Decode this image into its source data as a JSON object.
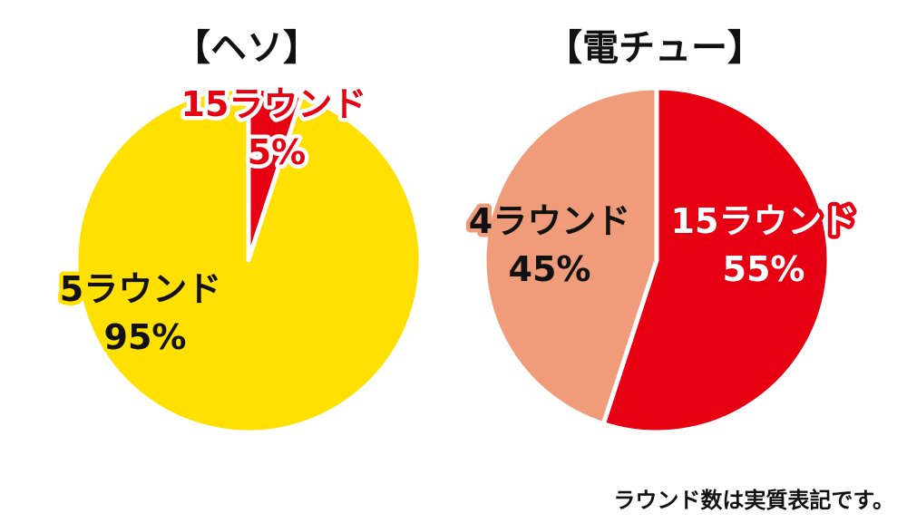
{
  "chart_data": [
    {
      "type": "pie",
      "title": "【ヘソ】",
      "slices": [
        {
          "label": "5ラウンド",
          "value": 95,
          "value_label": "95%",
          "color": "#FFE000",
          "text_color": "#111111",
          "stroke_color": "#FFE000"
        },
        {
          "label": "15ラウンド",
          "value": 5,
          "value_label": "5%",
          "color": "#E60012",
          "text_color": "#E60012",
          "stroke_color": "#FFFFFF"
        }
      ]
    },
    {
      "type": "pie",
      "title": "【電チュー】",
      "slices": [
        {
          "label": "15ラウンド",
          "value": 55,
          "value_label": "55%",
          "color": "#E60012",
          "text_color": "#FFFFFF",
          "stroke_color": "#E60012"
        },
        {
          "label": "4ラウンド",
          "value": 45,
          "value_label": "45%",
          "color": "#F09B79",
          "text_color": "#111111",
          "stroke_color": "#F09B79"
        }
      ]
    }
  ],
  "footnote": "ラウンド数は実質表記です。"
}
